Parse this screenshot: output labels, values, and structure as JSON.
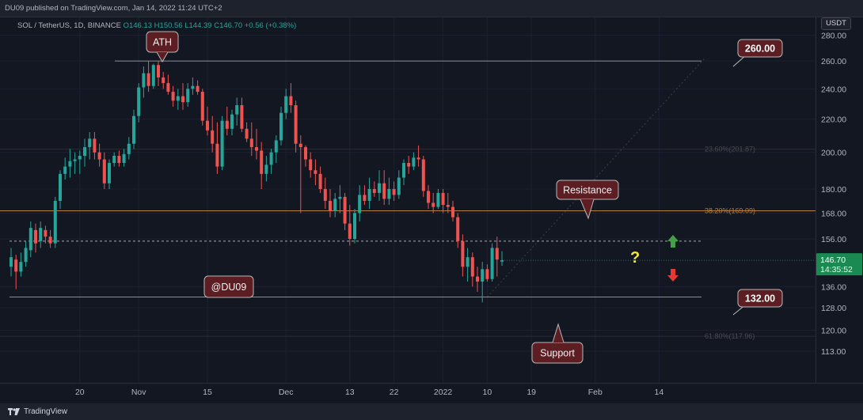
{
  "header": {
    "publish_line": "DU09 published on TradingView.com, Jan 14, 2022 11:24 UTC+2"
  },
  "symbol_bar": {
    "symbol": "SOL / TetherUS, 1D, BINANCE",
    "open": "O146.13",
    "high": "H150.56",
    "low": "L144.39",
    "close": "C146.70",
    "change": "+0.56 (+0.38%)"
  },
  "price_axis": {
    "currency": "USDT",
    "last_price": "146.70",
    "countdown": "14:35:52"
  },
  "footer": {
    "brand": "TradingView"
  },
  "colors": {
    "background": "#131722",
    "up": "#26a69a",
    "down": "#ef5350",
    "callout_fill": "#5c1e22",
    "fib_line": "#b8823a",
    "highlight_yellow": "#f5e63b"
  },
  "chart_data": {
    "type": "candlestick",
    "symbol": "SOL / TetherUS",
    "interval": "1D",
    "exchange": "BINANCE",
    "y_scale": "log",
    "ylim": [
      107,
      292
    ],
    "y_ticks": [
      113,
      120,
      128,
      136,
      146.7,
      156,
      168,
      180,
      200,
      220,
      240,
      260,
      280
    ],
    "y_tick_labels": [
      "113.00",
      "120.00",
      "128.00",
      "136.00",
      "",
      "156.00",
      "168.00",
      "180.00",
      "200.00",
      "220.00",
      "240.00",
      "260.00",
      "280.00"
    ],
    "x_ticks": [
      {
        "label": "20",
        "index": 14
      },
      {
        "label": "Nov",
        "index": 26
      },
      {
        "label": "15",
        "index": 40
      },
      {
        "label": "Dec",
        "index": 56
      },
      {
        "label": "13",
        "index": 69
      },
      {
        "label": "22",
        "index": 78
      },
      {
        "label": "2022",
        "index": 88
      },
      {
        "label": "10",
        "index": 97
      },
      {
        "label": "19",
        "index": 106
      },
      {
        "label": "Feb",
        "index": 119
      },
      {
        "label": "14",
        "index": 132
      }
    ],
    "bar_spacing": 6.2,
    "first_bar_x": 14,
    "candles": [
      [
        144,
        152,
        140,
        148
      ],
      [
        147,
        149,
        135,
        142
      ],
      [
        142,
        150,
        140,
        146
      ],
      [
        146,
        155,
        144,
        152
      ],
      [
        151,
        164,
        148,
        161
      ],
      [
        160,
        163,
        150,
        154
      ],
      [
        155,
        164,
        152,
        161
      ],
      [
        160,
        162,
        154,
        157
      ],
      [
        157,
        160,
        152,
        154
      ],
      [
        154,
        176,
        152,
        174
      ],
      [
        174,
        190,
        170,
        188
      ],
      [
        188,
        197,
        185,
        192
      ],
      [
        192,
        202,
        186,
        195
      ],
      [
        195,
        200,
        188,
        196
      ],
      [
        196,
        201,
        188,
        198
      ],
      [
        198,
        208,
        192,
        203
      ],
      [
        203,
        212,
        196,
        208
      ],
      [
        208,
        212,
        196,
        200
      ],
      [
        200,
        205,
        192,
        196
      ],
      [
        196,
        200,
        180,
        183
      ],
      [
        183,
        196,
        180,
        194
      ],
      [
        194,
        200,
        192,
        198
      ],
      [
        198,
        201,
        192,
        194
      ],
      [
        194,
        202,
        192,
        199
      ],
      [
        199,
        209,
        196,
        205
      ],
      [
        205,
        226,
        202,
        222
      ],
      [
        222,
        244,
        218,
        241
      ],
      [
        241,
        256,
        234,
        251
      ],
      [
        251,
        260,
        238,
        242
      ],
      [
        242,
        258,
        240,
        257
      ],
      [
        257,
        260,
        242,
        248
      ],
      [
        248,
        252,
        240,
        244
      ],
      [
        244,
        250,
        236,
        238
      ],
      [
        238,
        242,
        228,
        232
      ],
      [
        232,
        240,
        226,
        235
      ],
      [
        235,
        244,
        226,
        231
      ],
      [
        231,
        244,
        228,
        240
      ],
      [
        240,
        248,
        236,
        242
      ],
      [
        242,
        246,
        236,
        238
      ],
      [
        238,
        240,
        216,
        219
      ],
      [
        219,
        228,
        210,
        213
      ],
      [
        213,
        222,
        200,
        205
      ],
      [
        205,
        218,
        188,
        192
      ],
      [
        192,
        222,
        190,
        219
      ],
      [
        219,
        228,
        210,
        214
      ],
      [
        214,
        226,
        210,
        223
      ],
      [
        223,
        234,
        216,
        229
      ],
      [
        229,
        234,
        212,
        214
      ],
      [
        214,
        218,
        206,
        208
      ],
      [
        208,
        218,
        198,
        203
      ],
      [
        203,
        214,
        196,
        201
      ],
      [
        201,
        206,
        180,
        188
      ],
      [
        188,
        198,
        184,
        193
      ],
      [
        193,
        202,
        188,
        200
      ],
      [
        200,
        210,
        194,
        207
      ],
      [
        207,
        228,
        204,
        224
      ],
      [
        224,
        240,
        220,
        235
      ],
      [
        235,
        244,
        224,
        229
      ],
      [
        229,
        232,
        200,
        205
      ],
      [
        205,
        210,
        168,
        203
      ],
      [
        203,
        204,
        192,
        196
      ],
      [
        196,
        200,
        186,
        190
      ],
      [
        190,
        196,
        182,
        188
      ],
      [
        188,
        192,
        178,
        180
      ],
      [
        180,
        186,
        170,
        174
      ],
      [
        174,
        180,
        166,
        169
      ],
      [
        169,
        178,
        166,
        175
      ],
      [
        175,
        182,
        168,
        176
      ],
      [
        176,
        178,
        160,
        163
      ],
      [
        163,
        172,
        153,
        156
      ],
      [
        156,
        170,
        154,
        168
      ],
      [
        168,
        182,
        164,
        177
      ],
      [
        177,
        182,
        172,
        174
      ],
      [
        174,
        186,
        170,
        180
      ],
      [
        180,
        184,
        176,
        178
      ],
      [
        178,
        190,
        174,
        183
      ],
      [
        183,
        190,
        172,
        175
      ],
      [
        175,
        186,
        172,
        180
      ],
      [
        180,
        184,
        174,
        177
      ],
      [
        177,
        190,
        175,
        186
      ],
      [
        186,
        196,
        182,
        194
      ],
      [
        194,
        198,
        188,
        192
      ],
      [
        192,
        200,
        190,
        197
      ],
      [
        197,
        204,
        192,
        196
      ],
      [
        196,
        198,
        176,
        179
      ],
      [
        179,
        182,
        170,
        173
      ],
      [
        173,
        178,
        168,
        171
      ],
      [
        171,
        180,
        170,
        178
      ],
      [
        178,
        180,
        168,
        172
      ],
      [
        172,
        178,
        168,
        171
      ],
      [
        171,
        174,
        164,
        166
      ],
      [
        166,
        168,
        152,
        155
      ],
      [
        155,
        158,
        140,
        144
      ],
      [
        144,
        152,
        138,
        148
      ],
      [
        148,
        150,
        136,
        140
      ],
      [
        140,
        144,
        134,
        138
      ],
      [
        138,
        146,
        130,
        143
      ],
      [
        143,
        145,
        138,
        139
      ],
      [
        139,
        154,
        138,
        152
      ],
      [
        152,
        157,
        140,
        147
      ],
      [
        146.13,
        150.56,
        144.39,
        146.7
      ]
    ],
    "fib_levels": [
      {
        "label": "23.60%(201.87)",
        "price": 201.87,
        "faint": true
      },
      {
        "label": "38.20%(169.09)",
        "price": 169.09,
        "faint": false
      },
      {
        "label": "61.80%(117.96)",
        "price": 117.96,
        "faint": true
      }
    ],
    "horizontal_lines": [
      {
        "price": 260,
        "style": "solid"
      },
      {
        "price": 155,
        "style": "dashed"
      },
      {
        "price": 132,
        "style": "solid"
      }
    ],
    "annotations": {
      "ath": "ATH",
      "resistance": "Resistance",
      "support": "Support",
      "watermark": "@DU09",
      "level_top": "260.00",
      "level_bottom": "132.00",
      "question": "?"
    }
  }
}
